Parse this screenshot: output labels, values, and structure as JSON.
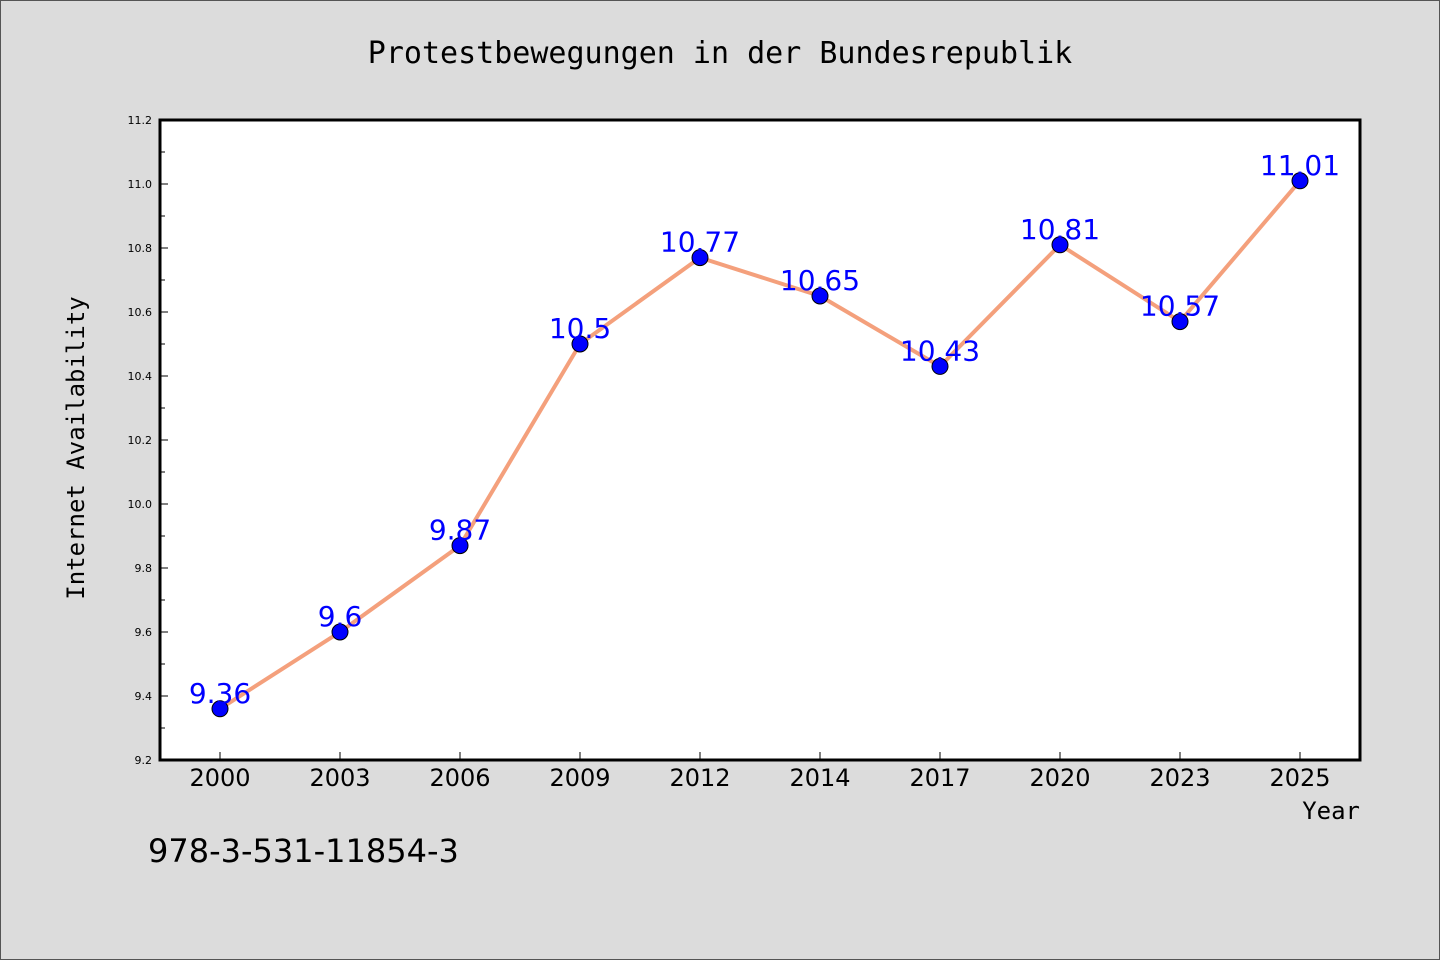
{
  "chart_data": {
    "type": "line",
    "title": "Protestbewegungen in der Bundesrepublik",
    "xlabel": "Year",
    "ylabel": "Internet Availability",
    "categories": [
      "2000",
      "2003",
      "2006",
      "2009",
      "2012",
      "2014",
      "2017",
      "2020",
      "2023",
      "2025"
    ],
    "series": [
      {
        "values": [
          9.36,
          9.6,
          9.87,
          10.5,
          10.77,
          10.65,
          10.43,
          10.81,
          10.57,
          11.01
        ],
        "data_labels": [
          "9.36",
          "9.6",
          "9.87",
          "10.5",
          "10.77",
          "10.65",
          "10.43",
          "10.81",
          "10.57",
          "11.01"
        ],
        "line_color": "#f4a07c",
        "marker_color": "#0000ff",
        "label_color": "#0000ff"
      }
    ],
    "ylim": [
      9.2,
      11.2
    ],
    "yticks": [
      "9.2",
      "9.4",
      "9.6",
      "9.8",
      "10.0",
      "10.2",
      "10.4",
      "10.6",
      "10.8",
      "11.0",
      "11.2"
    ],
    "grid": false,
    "legend": "none",
    "background": "#dcdcdc",
    "plot_background": "#ffffff"
  },
  "footer": {
    "isbn": "978-3-531-11854-3"
  }
}
